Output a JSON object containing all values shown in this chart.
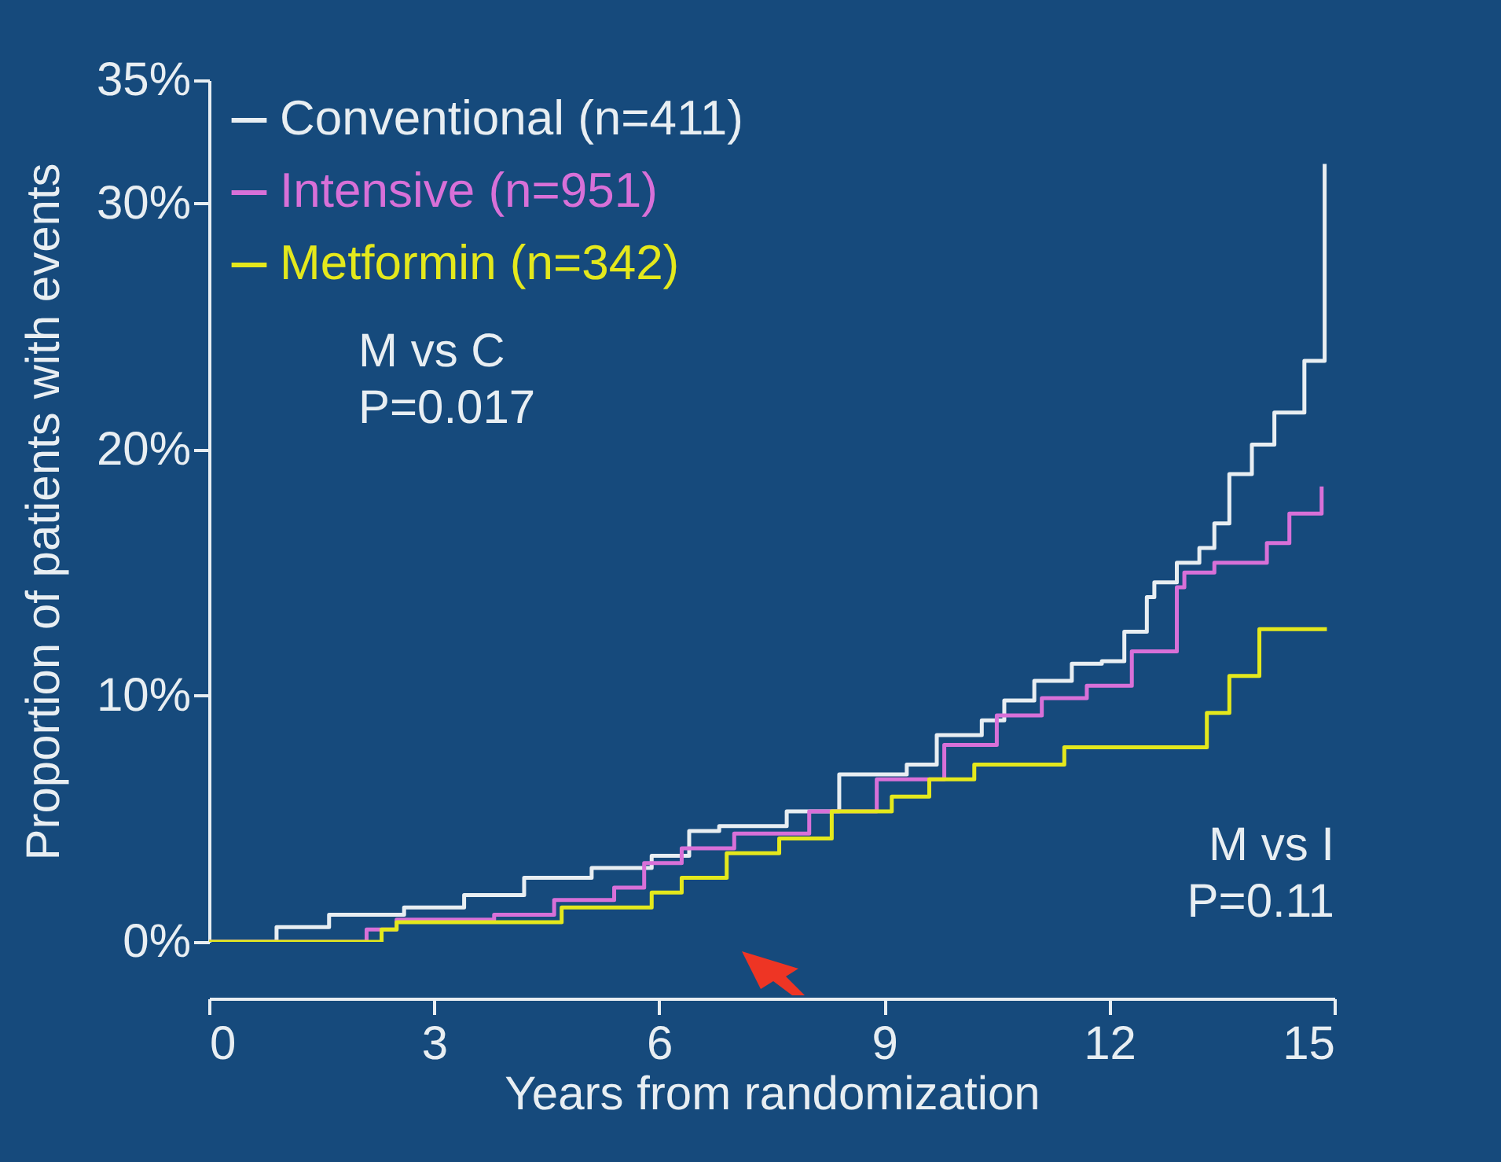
{
  "chart_data": {
    "type": "step",
    "xlabel": "Years from randomization",
    "ylabel": "Proportion of patients with events",
    "xlim": [
      0,
      15
    ],
    "xticks": [
      0,
      3,
      6,
      9,
      12,
      15
    ],
    "ylim": [
      0,
      35
    ],
    "yticks": [
      {
        "value": 0,
        "label": "0%"
      },
      {
        "value": 10,
        "label": "10%"
      },
      {
        "value": 20,
        "label": "20%"
      },
      {
        "value": 30,
        "label": "30%"
      },
      {
        "value": 35,
        "label": "35%"
      }
    ],
    "legend": "top left",
    "grid": false,
    "series": [
      {
        "name": "Conventional (n=411)",
        "color": "#e8eef2",
        "x": [
          0,
          0.9,
          1.6,
          2.6,
          3.4,
          4.2,
          5.1,
          5.9,
          6.4,
          6.8,
          7.7,
          8.4,
          9.3,
          9.7,
          10.3,
          10.6,
          11.0,
          11.5,
          11.9,
          12.2,
          12.5,
          12.6,
          12.9,
          13.2,
          13.4,
          13.6,
          13.9,
          14.2,
          14.6,
          14.87
        ],
        "values": [
          0,
          0.6,
          1.1,
          1.4,
          1.9,
          2.6,
          3.0,
          3.5,
          4.5,
          4.7,
          5.3,
          6.8,
          7.2,
          8.4,
          9.0,
          9.8,
          10.6,
          11.3,
          11.4,
          12.6,
          14.0,
          14.6,
          15.4,
          16.0,
          17.0,
          19.0,
          20.2,
          21.5,
          23.6,
          31.6
        ]
      },
      {
        "name": "Intensive (n=951)",
        "color": "#d870d8",
        "x": [
          0,
          2.1,
          2.5,
          3.8,
          4.6,
          5.4,
          5.8,
          6.3,
          7.0,
          8.0,
          8.9,
          9.8,
          10.5,
          11.1,
          11.7,
          12.3,
          12.9,
          13.0,
          13.4,
          14.1,
          14.4,
          14.83
        ],
        "values": [
          0,
          0.5,
          0.9,
          1.1,
          1.7,
          2.2,
          3.2,
          3.8,
          4.4,
          5.3,
          6.6,
          8.0,
          9.2,
          9.9,
          10.4,
          11.8,
          14.4,
          15.0,
          15.4,
          16.2,
          17.4,
          18.5
        ]
      },
      {
        "name": "Metformin (n=342)",
        "color": "#e4e81c",
        "x": [
          0,
          2.3,
          2.5,
          4.7,
          5.9,
          6.3,
          6.9,
          7.6,
          8.3,
          9.1,
          9.6,
          10.2,
          11.4,
          13.3,
          13.6,
          14.0,
          14.9
        ],
        "values": [
          0,
          0.5,
          0.8,
          1.4,
          2.0,
          2.6,
          3.6,
          4.2,
          5.3,
          5.9,
          6.6,
          7.2,
          7.9,
          9.3,
          10.8,
          12.7,
          12.7
        ]
      }
    ],
    "annotations": [
      "M vs C\nP=0.017",
      "M vs I\nP=0.11"
    ]
  }
}
